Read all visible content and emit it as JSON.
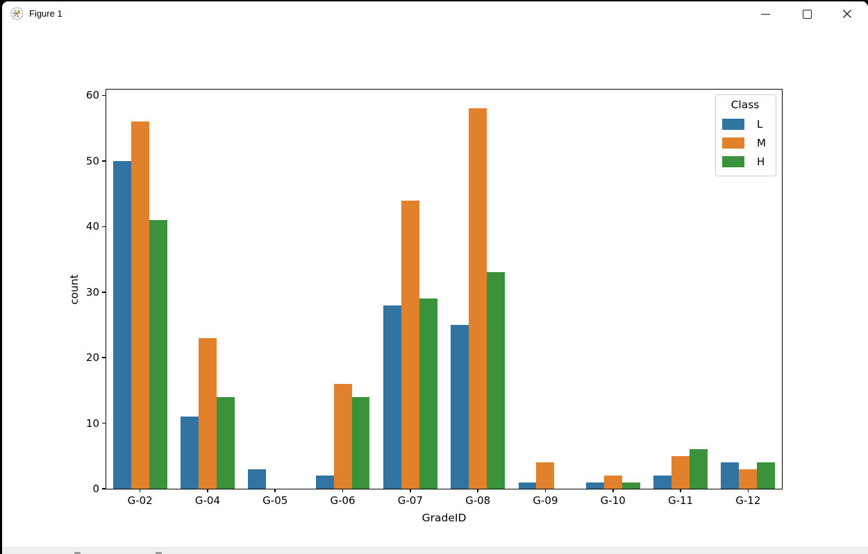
{
  "window": {
    "title": "Figure 1",
    "icon": "matplotlib-logo",
    "controls": [
      {
        "name": "minimize"
      },
      {
        "name": "maximize"
      },
      {
        "name": "close"
      }
    ]
  },
  "chart_data": {
    "type": "bar",
    "title": "",
    "xlabel": "GradeID",
    "ylabel": "count",
    "categories": [
      "G-02",
      "G-04",
      "G-05",
      "G-06",
      "G-07",
      "G-08",
      "G-09",
      "G-10",
      "G-11",
      "G-12"
    ],
    "series": [
      {
        "name": "L",
        "color": "#3274a1",
        "values": [
          50,
          11,
          3,
          2,
          28,
          25,
          1,
          1,
          2,
          4
        ]
      },
      {
        "name": "M",
        "color": "#e1812c",
        "values": [
          56,
          23,
          0,
          16,
          44,
          58,
          4,
          2,
          5,
          3
        ]
      },
      {
        "name": "H",
        "color": "#3a923a",
        "values": [
          41,
          14,
          0,
          14,
          29,
          33,
          0,
          1,
          6,
          4
        ]
      }
    ],
    "legend": {
      "title": "Class",
      "position": "upper right"
    },
    "yticks": [
      0,
      10,
      20,
      30,
      40,
      50,
      60
    ],
    "ylim": [
      0,
      60.9
    ],
    "grid": false,
    "bar_group_width": 0.8
  }
}
